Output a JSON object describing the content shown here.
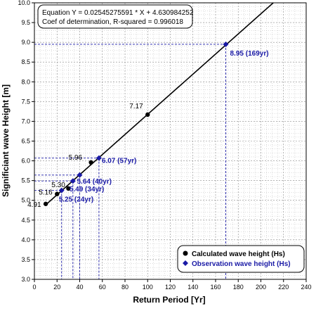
{
  "chart_data": {
    "type": "scatter",
    "xlabel": "Return Period [Yr]",
    "ylabel": "Significiant wave Height [m]",
    "xlim": [
      0,
      240
    ],
    "ylim": [
      3.0,
      10.0
    ],
    "x_ticks": [
      0,
      20,
      40,
      60,
      80,
      100,
      120,
      140,
      160,
      180,
      200,
      220,
      240
    ],
    "y_ticks": [
      3.0,
      3.5,
      4.0,
      4.5,
      5.0,
      5.5,
      6.0,
      6.5,
      7.0,
      7.5,
      8.0,
      8.5,
      9.0,
      9.5,
      10.0
    ],
    "grid": true,
    "legend_position": "bottom-right",
    "equation_box": {
      "line1": "Equation Y = 0.02545275591 * X + 4.630984252",
      "line2": "Coef of determination, R-squared = 0.996018"
    },
    "fit_line": {
      "slope": 0.02545275591,
      "intercept": 4.630984252
    },
    "series": [
      {
        "name": "Calculated wave height (Hs)",
        "color": "#000000",
        "marker": "circle",
        "points": [
          {
            "x": 10,
            "y": 4.91,
            "label": "4.91"
          },
          {
            "x": 20,
            "y": 5.16,
            "label": "5.16"
          },
          {
            "x": 30,
            "y": 5.3,
            "label": "5.30"
          },
          {
            "x": 50,
            "y": 5.96,
            "label": "5.96"
          },
          {
            "x": 100,
            "y": 7.17,
            "label": "7.17"
          }
        ]
      },
      {
        "name": "Observation wave height (Hs)",
        "color": "#1a1aa6",
        "marker": "diamond",
        "points": [
          {
            "x": 24,
            "y": 5.25,
            "label": "5.25 (24yr)"
          },
          {
            "x": 34,
            "y": 5.49,
            "label": "5.49 (34yr)"
          },
          {
            "x": 40,
            "y": 5.64,
            "label": "5.64 (40yr)"
          },
          {
            "x": 57,
            "y": 6.07,
            "label": "6.07 (57yr)"
          },
          {
            "x": 169,
            "y": 8.95,
            "label": "8.95 (169yr)"
          }
        ]
      }
    ]
  }
}
